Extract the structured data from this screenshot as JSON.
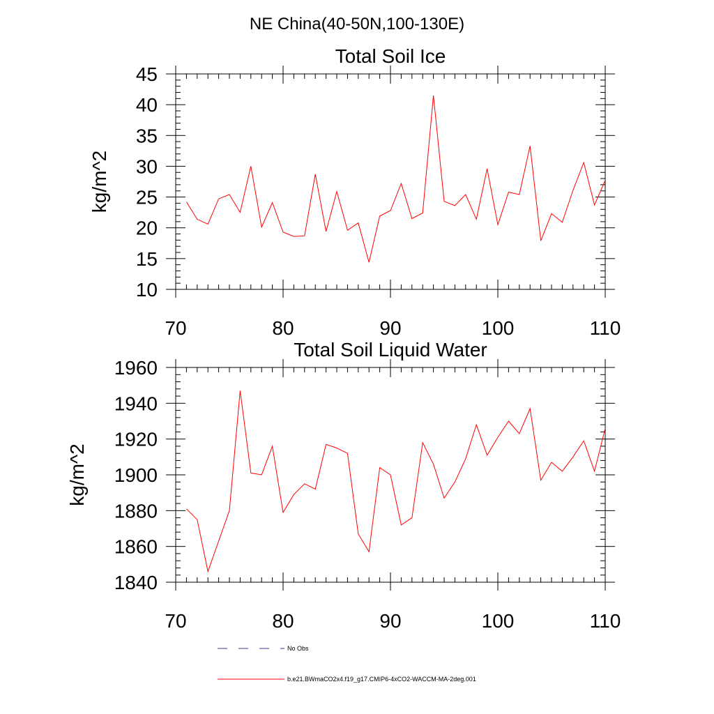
{
  "figure_title": "NE China(40-50N,100-130E)",
  "legend": [
    {
      "label": "No Obs",
      "style": "dashed",
      "color": "#3a3a8c"
    },
    {
      "label": "b.e21.BWmaCO2x4.f19_g17.CMIP6-4xCO2-WACCM-MA-2deg.001",
      "style": "solid",
      "color": "#ff0000"
    }
  ],
  "chart_data": [
    {
      "type": "line",
      "title": "Total Soil Ice",
      "xlabel": "",
      "ylabel": "kg/m^2",
      "xlim": [
        70,
        110
      ],
      "ylim": [
        10,
        45
      ],
      "xticks": [
        70,
        80,
        90,
        100,
        110
      ],
      "yticks": [
        10,
        15,
        20,
        25,
        30,
        35,
        40,
        45
      ],
      "grid": false,
      "series": [
        {
          "color": "#ff0000",
          "x": [
            71,
            72,
            73,
            74,
            75,
            76,
            77,
            78,
            79,
            80,
            81,
            82,
            83,
            84,
            85,
            86,
            87,
            88,
            89,
            90,
            91,
            92,
            93,
            94,
            95,
            96,
            97,
            98,
            99,
            100,
            101,
            102,
            103,
            104,
            105,
            106,
            107,
            108,
            109,
            110
          ],
          "values": [
            24.2,
            21.4,
            20.6,
            24.7,
            25.4,
            22.5,
            30.0,
            20.1,
            24.1,
            19.3,
            18.6,
            18.7,
            28.7,
            19.4,
            25.9,
            19.6,
            20.8,
            14.4,
            21.9,
            22.8,
            27.2,
            21.5,
            22.4,
            41.5,
            24.3,
            23.6,
            25.4,
            21.4,
            29.6,
            20.5,
            25.8,
            25.4,
            33.3,
            17.9,
            22.3,
            20.9,
            26.1,
            30.6,
            23.7,
            27.7
          ]
        }
      ]
    },
    {
      "type": "line",
      "title": "Total Soil Liquid Water",
      "xlabel": "",
      "ylabel": "kg/m^2",
      "xlim": [
        70,
        110
      ],
      "ylim": [
        1840,
        1960
      ],
      "xticks": [
        70,
        80,
        90,
        100,
        110
      ],
      "yticks": [
        1840,
        1860,
        1880,
        1900,
        1920,
        1940,
        1960
      ],
      "grid": false,
      "series": [
        {
          "color": "#ff0000",
          "x": [
            71,
            72,
            73,
            74,
            75,
            76,
            77,
            78,
            79,
            80,
            81,
            82,
            83,
            84,
            85,
            86,
            87,
            88,
            89,
            90,
            91,
            92,
            93,
            94,
            95,
            96,
            97,
            98,
            99,
            100,
            101,
            102,
            103,
            104,
            105,
            106,
            107,
            108,
            109,
            110
          ],
          "values": [
            1881,
            1875,
            1846,
            1863,
            1880,
            1947,
            1901,
            1900,
            1916,
            1879,
            1889,
            1895,
            1892,
            1917,
            1915,
            1912,
            1867,
            1857,
            1904,
            1900,
            1872,
            1876,
            1918,
            1906,
            1887,
            1896,
            1909,
            1928,
            1911,
            1921,
            1930,
            1923,
            1937,
            1897,
            1907,
            1902,
            1910,
            1919,
            1902,
            1926
          ]
        }
      ]
    }
  ]
}
